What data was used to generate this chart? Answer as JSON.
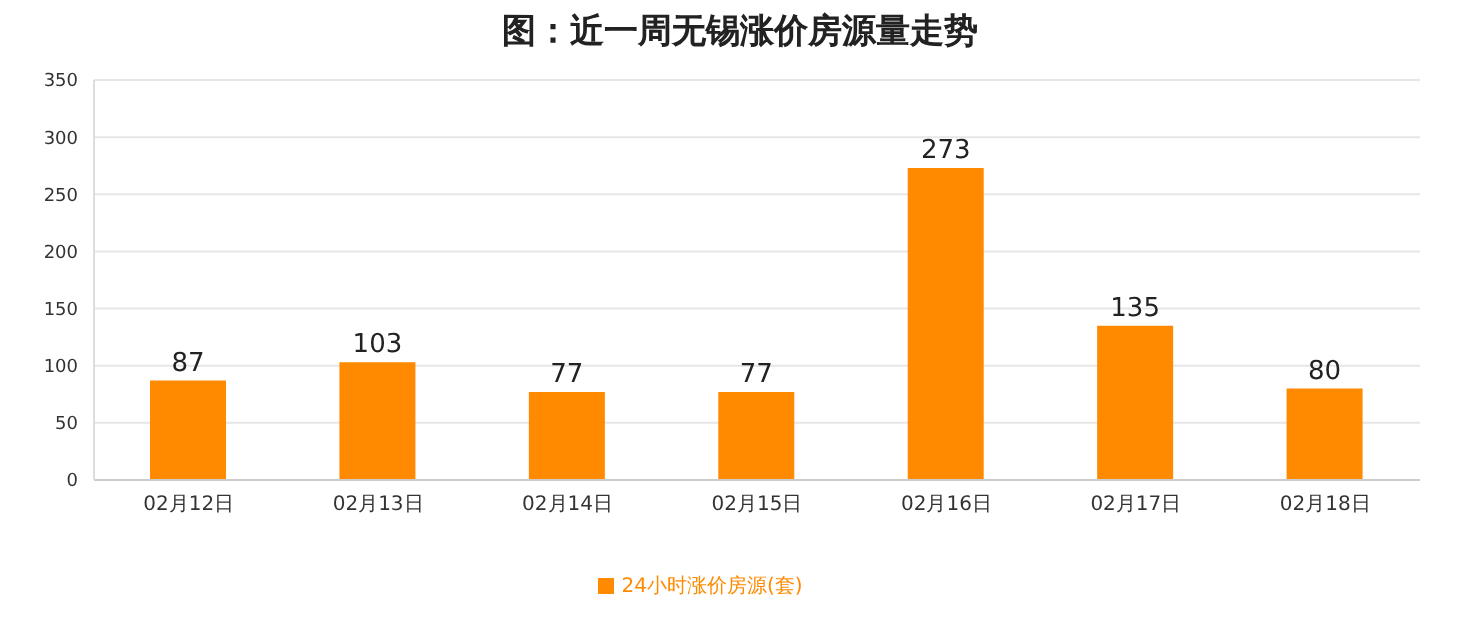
{
  "chart_data": {
    "type": "bar",
    "title": "图：近一周无锡涨价房源量走势",
    "categories": [
      "02月12日",
      "02月13日",
      "02月14日",
      "02月15日",
      "02月16日",
      "02月17日",
      "02月18日"
    ],
    "series": [
      {
        "name": "24小时涨价房源(套)",
        "color": "#ff8a00",
        "values": [
          87,
          103,
          77,
          77,
          273,
          135,
          80
        ]
      }
    ],
    "ylim": [
      0,
      350
    ],
    "yticks": [
      0,
      50,
      100,
      150,
      200,
      250,
      300,
      350
    ],
    "grid": "y",
    "legend": "bottom",
    "data_labels": true
  }
}
